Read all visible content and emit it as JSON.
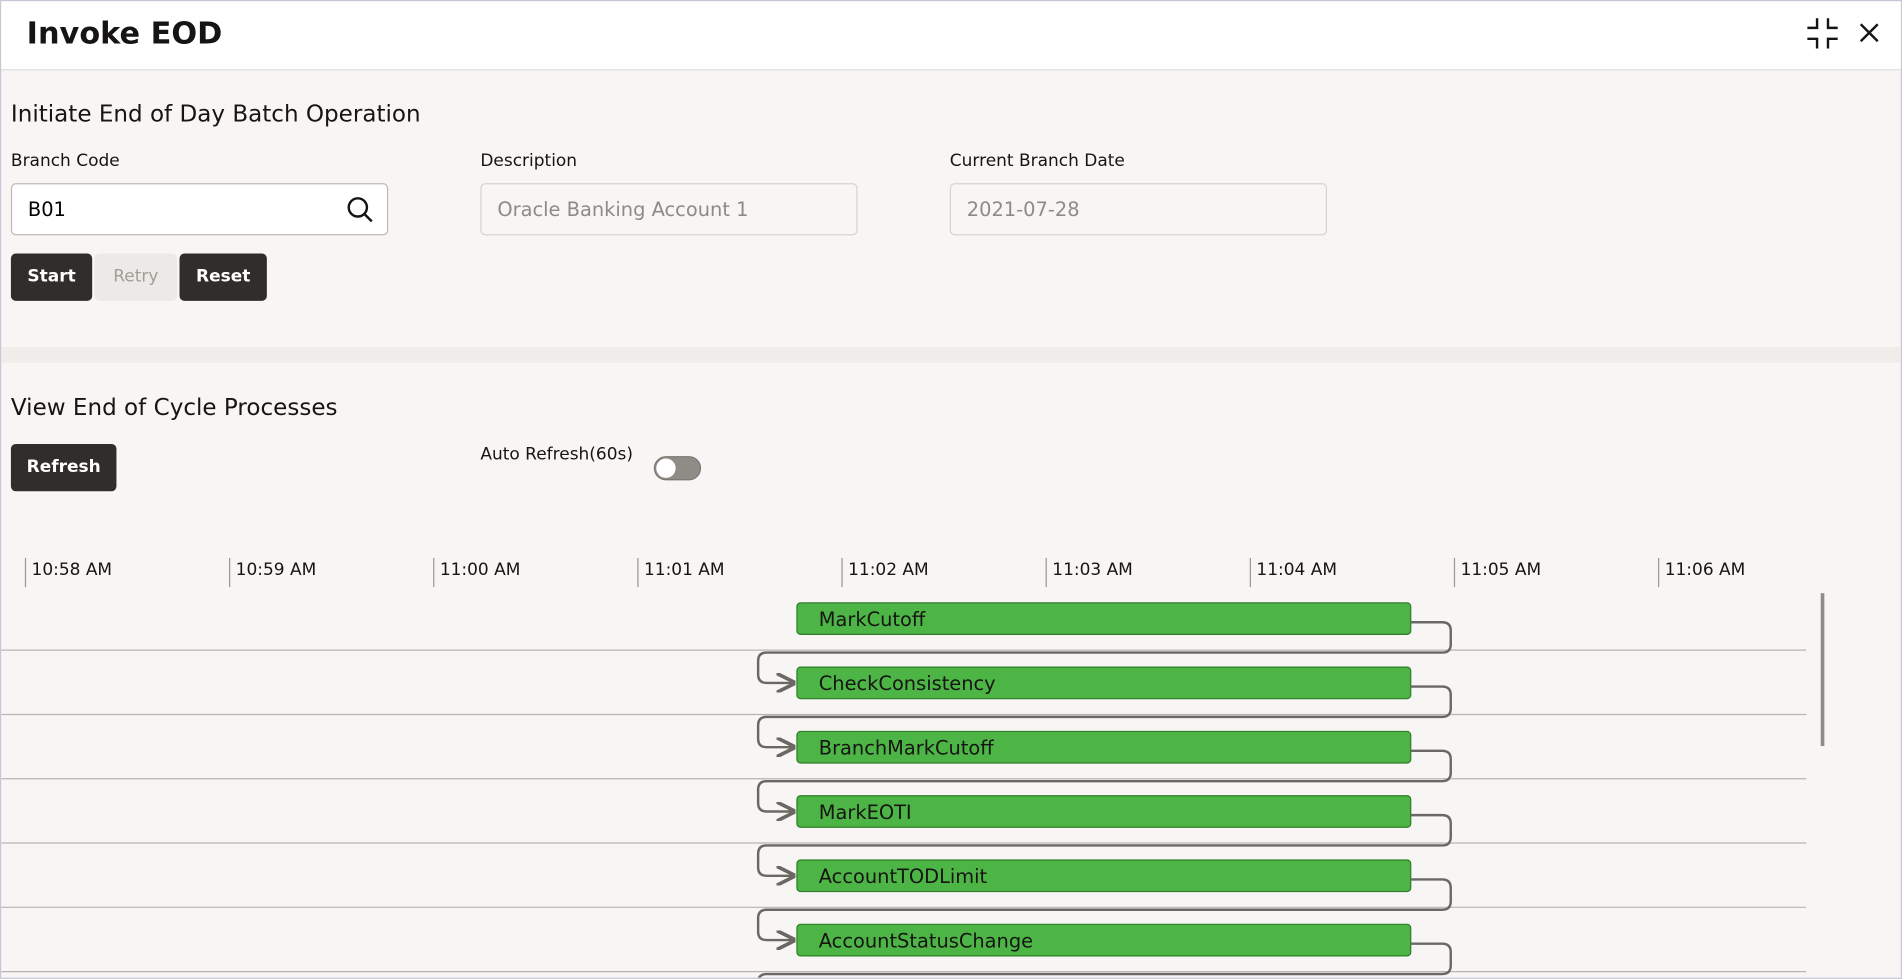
{
  "header": {
    "title": "Invoke EOD"
  },
  "initiate": {
    "title": "Initiate End of Day Batch Operation",
    "fields": [
      {
        "label": "Branch Code",
        "value": "B01"
      },
      {
        "label": "Description",
        "value": "Oracle Banking Account 1"
      },
      {
        "label": "Current Branch Date",
        "value": "2021-07-28"
      }
    ],
    "buttons": [
      "Start",
      "Retry",
      "Reset"
    ]
  },
  "processes": {
    "title": "View End of Cycle Processes",
    "refresh": "Refresh",
    "auto_refresh": "Auto Refresh(60s)",
    "timeline": [
      "10:58 AM",
      "10:59 AM",
      "11:00 AM",
      "11:01 AM",
      "11:02 AM",
      "11:03 AM",
      "11:04 AM",
      "11:05 AM",
      "11:06 AM"
    ],
    "tasks": [
      "MarkCutoff",
      "CheckConsistency",
      "BranchMarkCutoff",
      "MarkEOTI",
      "AccountTODLimit",
      "AccountStatusChange"
    ]
  }
}
